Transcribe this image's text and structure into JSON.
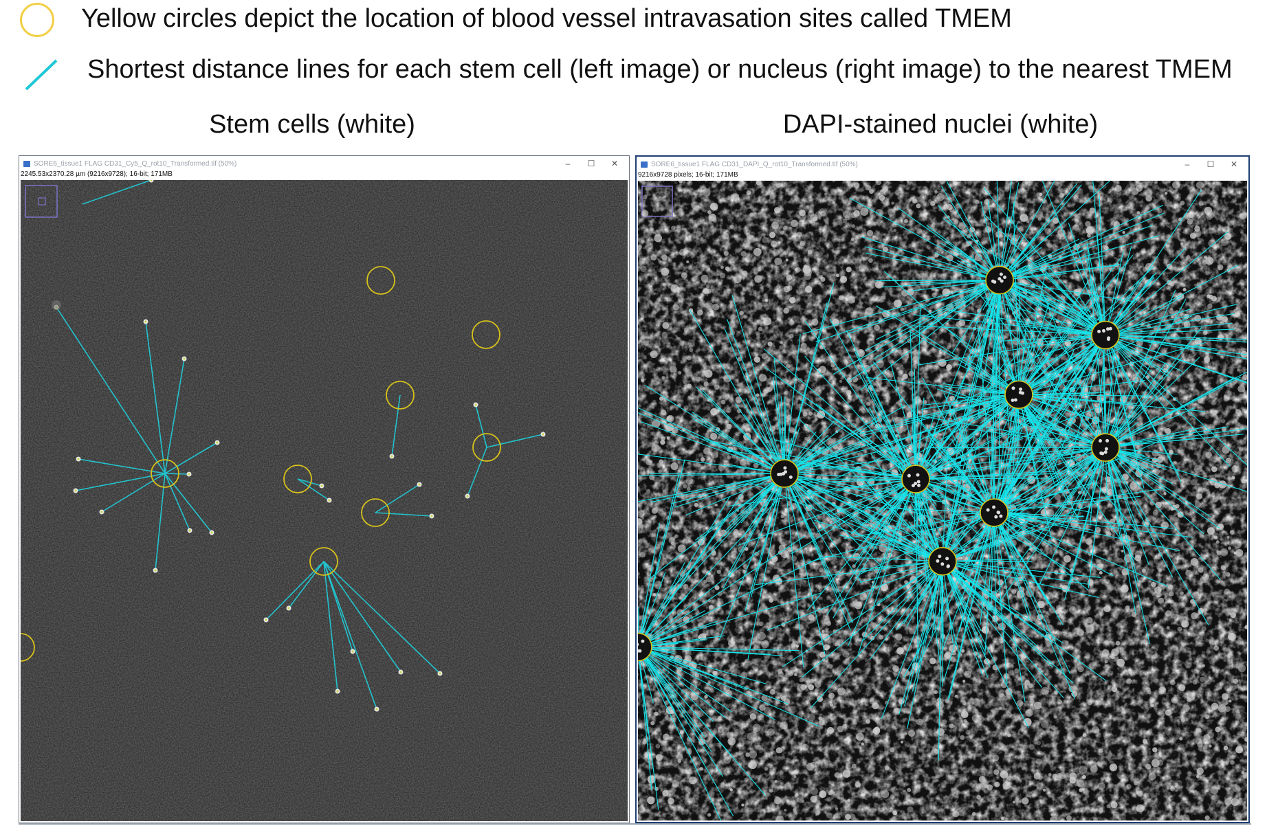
{
  "legend": {
    "circle_text": "Yellow circles depict the location of blood vessel intravasation sites called TMEM",
    "line_text": "Shortest distance lines for each stem cell (left image) or nucleus (right image) to the nearest TMEM",
    "circle_color": "#f2cf46",
    "line_color": "#1ec8d6"
  },
  "panels": {
    "left_title": "Stem cells (white)",
    "right_title": "DAPI-stained nuclei (white)"
  },
  "left_window": {
    "title": "SORE6_tissue1 FLAG CD31_Cy5_Q_rot10_Transformed.tif (50%)",
    "info": "2245.53x2370.28 µm (9216x9728); 16-bit; 171MB",
    "controls": [
      "–",
      "☐",
      "✕"
    ]
  },
  "right_window": {
    "title": "SORE6_tissue1 FLAG CD31_DAPI_Q_rot10_Transformed.tif (50%)",
    "info": "9216x9728 pixels; 16-bit; 171MB",
    "controls": [
      "–",
      "☐",
      "✕"
    ]
  },
  "colors": {
    "tmem_circle": "#d8c21a",
    "distance_line": "#21c4cf",
    "right_line": "#14e3ea",
    "tissue_dark": "#2a2a2a"
  }
}
